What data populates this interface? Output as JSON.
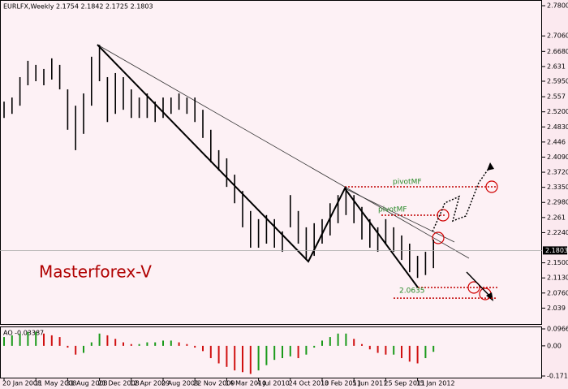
{
  "chart_data": [
    {
      "type": "rangebar",
      "title": "EURLFX,Weekly  2.1754 2.1842 2.1725 2.1803",
      "categories": [
        "20 Jan 2008",
        null,
        null,
        null,
        "11 May 2008",
        null,
        null,
        null,
        "31 Aug 2008",
        null,
        null,
        null,
        "21 Dec 2008",
        null,
        null,
        null,
        "12 Apr 2009",
        null,
        null,
        null,
        "2 Aug 2009",
        null,
        null,
        null,
        "22 Nov 2009",
        null,
        null,
        null,
        "14 Mar 2010",
        null,
        null,
        null,
        "4 Jul 2010",
        null,
        null,
        null,
        "24 Oct 2010",
        null,
        null,
        null,
        "13 Feb 2011",
        null,
        null,
        null,
        "5 Jun 2011",
        null,
        null,
        null,
        "25 Sep 2011",
        null,
        null,
        null,
        "15 Jan 2012",
        null,
        null
      ],
      "high": [
        2.545,
        2.555,
        2.605,
        2.645,
        2.635,
        2.625,
        2.651,
        2.635,
        2.575,
        2.535,
        2.565,
        2.655,
        2.684,
        2.605,
        2.615,
        2.605,
        2.575,
        2.555,
        2.565,
        2.545,
        2.555,
        2.555,
        2.565,
        2.555,
        2.555,
        2.525,
        2.476,
        2.426,
        2.406,
        2.366,
        2.326,
        2.277,
        2.257,
        2.267,
        2.257,
        2.227,
        2.316,
        2.277,
        2.237,
        2.247,
        2.257,
        2.296,
        2.316,
        2.336,
        2.316,
        2.287,
        2.257,
        2.237,
        2.257,
        2.237,
        2.217,
        2.197,
        2.167,
        2.177,
        2.207
      ],
      "low": [
        2.505,
        2.515,
        2.535,
        2.585,
        2.595,
        2.585,
        2.599,
        2.575,
        2.476,
        2.426,
        2.466,
        2.535,
        2.595,
        2.495,
        2.515,
        2.525,
        2.505,
        2.505,
        2.505,
        2.495,
        2.505,
        2.515,
        2.525,
        2.515,
        2.495,
        2.456,
        2.396,
        2.376,
        2.336,
        2.296,
        2.237,
        2.187,
        2.187,
        2.197,
        2.187,
        2.177,
        2.237,
        2.197,
        2.157,
        2.167,
        2.197,
        2.217,
        2.247,
        2.267,
        2.247,
        2.207,
        2.187,
        2.177,
        2.197,
        2.177,
        2.157,
        2.127,
        2.113,
        2.12,
        2.137
      ],
      "color": "#000000",
      "ylim": [
        1.998,
        2.794
      ],
      "yticks": [
        {
          "value": 2.78,
          "label": "2.7800"
        },
        {
          "value": 2.706,
          "label": "2.7060"
        },
        {
          "value": 2.668,
          "label": "2.6680"
        },
        2.631,
        {
          "value": 2.595,
          "label": "2.5950"
        },
        2.557,
        {
          "value": 2.52,
          "label": "2.5200"
        },
        {
          "value": 2.483,
          "label": "2.4830"
        },
        2.446,
        {
          "value": 2.409,
          "label": "2.4090"
        },
        {
          "value": 2.372,
          "label": "2.3720"
        },
        {
          "value": 2.335,
          "label": "2.3350"
        },
        {
          "value": 2.298,
          "label": "2.2980"
        },
        2.261,
        {
          "value": 2.224,
          "label": "2.2240"
        },
        {
          "value": 2.15,
          "label": "2.1500"
        },
        {
          "value": 2.113,
          "label": "2.1130"
        },
        {
          "value": 2.076,
          "label": "2.0760"
        },
        2.039
      ],
      "last_price": {
        "value": 2.1803,
        "label": "2.1803"
      },
      "level": {
        "value": 2.0635,
        "label": "2.0635"
      },
      "brand": "Masterforex-V",
      "pivot_labels": [
        "pivotMF",
        "pivotMF"
      ]
    },
    {
      "type": "histogram",
      "title": "AO -0.03387",
      "values": [
        0.05,
        0.06,
        0.07,
        0.08,
        0.08,
        0.07,
        0.06,
        0.05,
        -0.01,
        -0.05,
        -0.04,
        0.02,
        0.07,
        0.06,
        0.04,
        0.02,
        0.01,
        0.01,
        0.02,
        0.02,
        0.03,
        0.03,
        0.02,
        0.01,
        -0.01,
        -0.03,
        -0.07,
        -0.1,
        -0.12,
        -0.14,
        -0.15,
        -0.16,
        -0.14,
        -0.11,
        -0.08,
        -0.07,
        -0.06,
        -0.07,
        -0.05,
        -0.01,
        0.03,
        0.05,
        0.07,
        0.07,
        0.04,
        0.01,
        -0.02,
        -0.04,
        -0.05,
        -0.05,
        -0.07,
        -0.09,
        -0.1,
        -0.07,
        -0.034
      ],
      "up_color": "#1a9a1a",
      "down_color": "#d01010",
      "ylim": [
        -0.17191,
        0.09663
      ],
      "yticks": [
        0.09663,
        {
          "value": 0,
          "label": "0.00"
        },
        -0.17191
      ]
    }
  ]
}
